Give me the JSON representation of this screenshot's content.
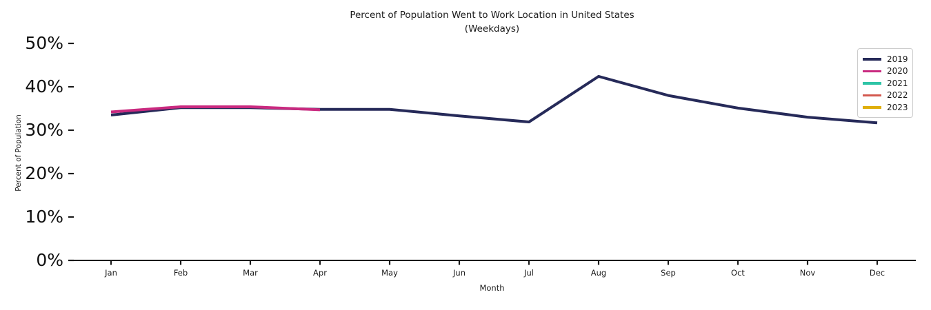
{
  "title": {
    "line1": "Percent of Population Went to Work Location in United States",
    "line2": "(Weekdays)"
  },
  "chart_data": {
    "type": "line",
    "title": "Percent of Population Went to Work Location in United States (Weekdays)",
    "xlabel": "Month",
    "ylabel": "Percent of Population",
    "categories": [
      "Jan",
      "Feb",
      "Mar",
      "Apr",
      "May",
      "Jun",
      "Jul",
      "Aug",
      "Sep",
      "Oct",
      "Nov",
      "Dec"
    ],
    "y_ticks": [
      0,
      10,
      20,
      30,
      40,
      50
    ],
    "y_tick_labels": [
      "0%",
      "10%",
      "20%",
      "30%",
      "40%",
      "50%"
    ],
    "ylim": [
      0,
      50
    ],
    "grid": false,
    "legend_position": "upper right",
    "series": [
      {
        "name": "2019",
        "color": "#262a59",
        "values": [
          33.5,
          35.2,
          35.2,
          34.8,
          34.8,
          33.3,
          31.9,
          42.4,
          38.0,
          35.1,
          33.0,
          31.7
        ]
      },
      {
        "name": "2020",
        "color": "#c9297f",
        "values": [
          34.2,
          35.4,
          35.4,
          34.7,
          null,
          null,
          null,
          null,
          null,
          null,
          null,
          null
        ]
      },
      {
        "name": "2021",
        "color": "#2ec4a6",
        "values": []
      },
      {
        "name": "2022",
        "color": "#d3584e",
        "values": []
      },
      {
        "name": "2023",
        "color": "#dfae0b",
        "values": []
      }
    ]
  },
  "axis_color": "#1a1a1a"
}
